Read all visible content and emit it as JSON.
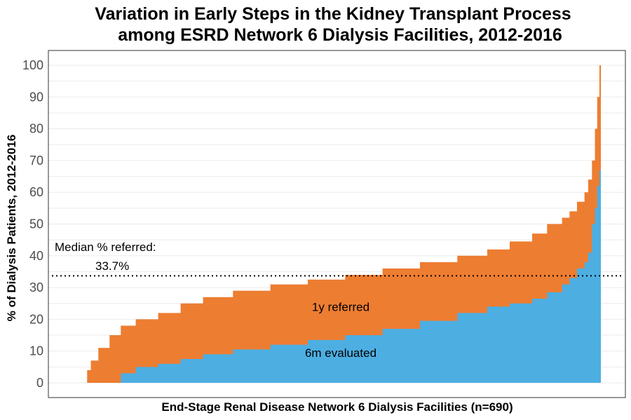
{
  "chart_data": {
    "type": "area",
    "title_line1": "Variation in Early Steps in the Kidney Transplant Process",
    "title_line2": "among ESRD Network 6 Dialysis Facilities, 2012-2016",
    "xlabel": "End-Stage Renal Disease Network 6 Dialysis Facilities (n=690)",
    "ylabel": "% of Dialysis Patients, 2012-2016",
    "ylim": [
      0,
      100
    ],
    "y_ticks": [
      "0",
      "10",
      "20",
      "30",
      "40",
      "50",
      "60",
      "70",
      "80",
      "90",
      "100"
    ],
    "grid": true,
    "x_rank_range": [
      1,
      690
    ],
    "x": [
      1,
      5,
      10,
      20,
      35,
      50,
      70,
      100,
      130,
      160,
      200,
      250,
      300,
      350,
      400,
      450,
      500,
      540,
      570,
      600,
      620,
      640,
      650,
      660,
      670,
      675,
      680,
      684,
      687,
      690
    ],
    "series": [
      {
        "name": "1y referred",
        "color": "#ED7D31",
        "values": [
          0,
          4,
          7,
          11,
          15,
          18,
          20,
          22,
          25,
          27,
          29,
          31,
          32.5,
          34,
          36,
          38,
          40,
          42,
          44.5,
          47,
          50,
          52,
          54,
          57,
          60,
          64,
          70,
          80,
          90,
          100
        ]
      },
      {
        "name": "6m evaluated",
        "color": "#4DAEE2",
        "values": [
          0,
          0,
          0,
          0,
          0,
          3,
          5,
          6,
          7.5,
          9,
          10.5,
          12,
          13.5,
          15,
          17,
          19.5,
          22,
          24,
          25,
          26.5,
          28.5,
          31,
          33,
          36,
          38,
          41,
          50,
          55,
          62,
          67
        ]
      }
    ],
    "median_line": {
      "value": 33.7,
      "label": "Median % referred:",
      "value_label": "33.7%"
    }
  }
}
